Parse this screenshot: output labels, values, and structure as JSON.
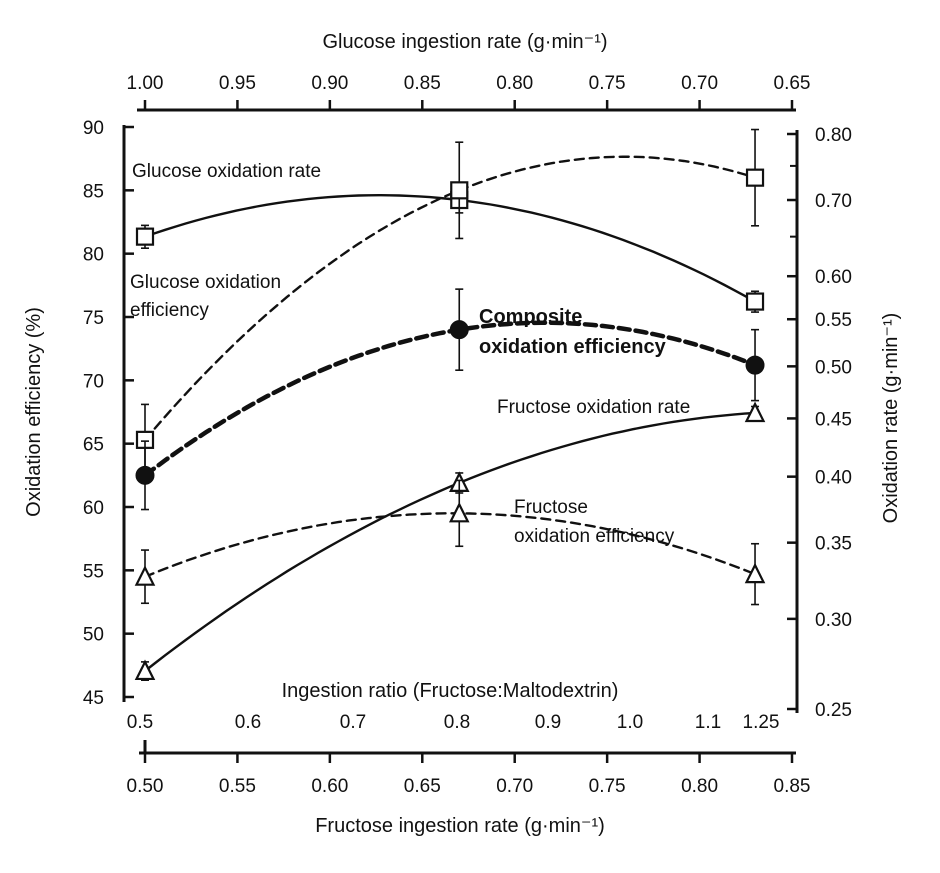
{
  "chart_data": {
    "type": "line",
    "axes": {
      "top": {
        "label": "Glucose ingestion rate (g·min⁻¹)",
        "ticks": [
          "1.00",
          "0.95",
          "0.90",
          "0.85",
          "0.80",
          "0.75",
          "0.70",
          "0.65"
        ],
        "range": [
          1.0,
          0.65
        ]
      },
      "left": {
        "label": "Oxidation efficiency (%)",
        "ticks": [
          "90",
          "85",
          "80",
          "75",
          "70",
          "65",
          "60",
          "55",
          "50",
          "45"
        ],
        "range": [
          45,
          90
        ]
      },
      "right": {
        "label": "Oxidation rate (g·min⁻¹)",
        "ticks": [
          "0.80",
          "0.70",
          "0.60",
          "0.55",
          "0.50",
          "0.45",
          "0.40",
          "0.35",
          "0.30",
          "0.25"
        ],
        "scale": "log",
        "range": [
          0.25,
          0.8
        ]
      },
      "ratio": {
        "label": "Ingestion ratio (Fructose:Maltodextrin)",
        "ticks": [
          "0.5",
          "0.6",
          "0.7",
          "0.8",
          "0.9",
          "1.0",
          "1.1",
          "1.25"
        ]
      },
      "bottom": {
        "label": "Fructose ingestion rate (g·min⁻¹)",
        "ticks": [
          "0.50",
          "0.55",
          "0.60",
          "0.65",
          "0.70",
          "0.75",
          "0.80",
          "0.85"
        ],
        "range": [
          0.5,
          0.85
        ]
      }
    },
    "x": [
      0.5,
      0.67,
      0.83
    ],
    "series": [
      {
        "name": "Glucose oxidation rate",
        "axis": "right",
        "marker": "open-square",
        "line": "solid",
        "values": [
          0.65,
          0.7,
          0.57
        ],
        "errors": [
          0.015,
          0.018,
          0.012
        ]
      },
      {
        "name": "Glucose oxidation efficiency",
        "axis": "left",
        "marker": "open-square",
        "line": "dashed",
        "values": [
          65.3,
          85.0,
          86.0
        ],
        "errors": [
          2.8,
          3.8,
          3.8
        ]
      },
      {
        "name": "Composite oxidation efficiency",
        "axis": "left",
        "marker": "filled-circle",
        "line": "bold-dashed",
        "values": [
          62.5,
          74.0,
          71.2
        ],
        "errors": [
          2.7,
          3.2,
          2.8
        ]
      },
      {
        "name": "Fructose oxidation rate",
        "axis": "right",
        "marker": "open-triangle",
        "line": "solid",
        "values": [
          0.27,
          0.395,
          0.455
        ],
        "errors": [
          0.005,
          0.008,
          0.006
        ]
      },
      {
        "name": "Fructose oxidation efficiency",
        "axis": "left",
        "marker": "open-triangle",
        "line": "dashed",
        "values": [
          54.5,
          59.5,
          54.7
        ],
        "errors": [
          2.1,
          2.6,
          2.4
        ]
      }
    ],
    "annotations": [
      {
        "lines": [
          "Glucose oxidation rate"
        ],
        "weight": "normal"
      },
      {
        "lines": [
          "Glucose oxidation",
          "efficiency"
        ],
        "weight": "normal"
      },
      {
        "lines": [
          "Composite",
          "oxidation efficiency"
        ],
        "weight": "bold"
      },
      {
        "lines": [
          "Fructose oxidation rate"
        ],
        "weight": "normal"
      },
      {
        "lines": [
          "Fructose",
          "oxidation efficiency"
        ],
        "weight": "normal"
      }
    ]
  }
}
